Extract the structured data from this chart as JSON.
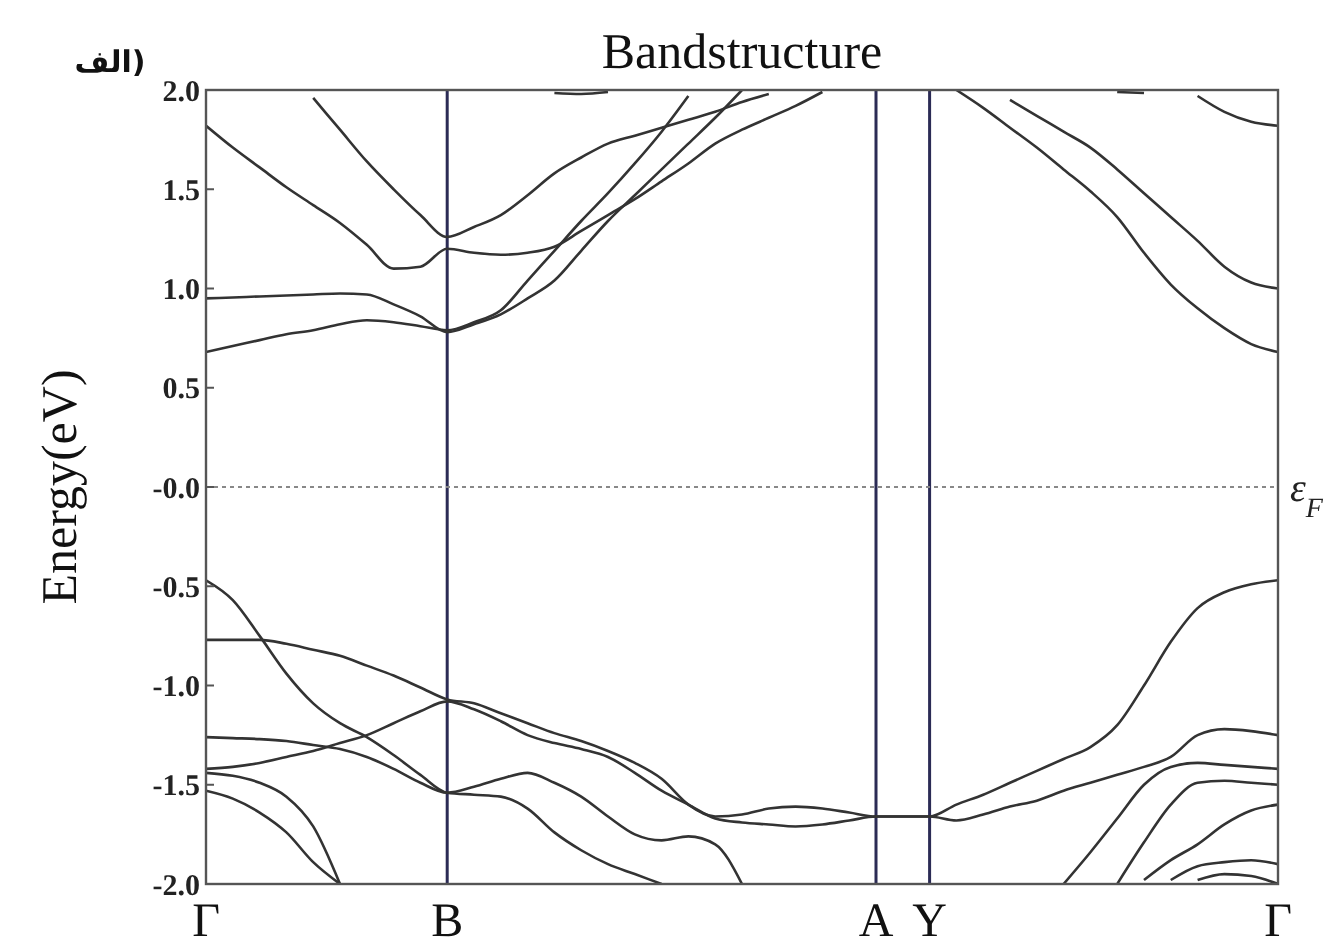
{
  "chart_data": {
    "type": "line",
    "title": "Bandstructure",
    "ylabel": "Energy(eV)",
    "annotations": [
      "الف)"
    ],
    "categories": [
      "Γ",
      null,
      null,
      null,
      null,
      null,
      null,
      null,
      null,
      "B",
      null,
      null,
      null,
      null,
      null,
      null,
      null,
      null,
      null,
      null,
      null,
      null,
      null,
      null,
      null,
      "A",
      null,
      "Y",
      null,
      null,
      null,
      null,
      null,
      null,
      null,
      null,
      null,
      null,
      null,
      null,
      "Γ"
    ],
    "ylim": [
      -2,
      2
    ],
    "yticks": [
      {
        "value": 2,
        "label": "2.0"
      },
      1.5,
      {
        "value": 1,
        "label": "1.0"
      },
      0.5,
      {
        "value": 0,
        "label": "-0.0"
      },
      -0.5,
      {
        "value": -1,
        "label": "-1.0"
      },
      -1.5,
      {
        "value": -2,
        "label": "-2.0"
      }
    ],
    "grid": false,
    "ref_lines": [
      {
        "axis": "x",
        "value": "B",
        "color": "#2b2b55"
      },
      {
        "axis": "x",
        "value": "A",
        "color": "#2b2b55"
      },
      {
        "axis": "x",
        "value": "Y",
        "color": "#2b2b55"
      },
      {
        "axis": "y",
        "value": 0,
        "label": "ε$_{F}$",
        "color": "#888888",
        "line_style": "dotted"
      }
    ],
    "series": [
      {
        "color": "#333333",
        "values": [
          0.68,
          0.71,
          0.74,
          0.77,
          0.79,
          0.82,
          0.84,
          0.83,
          0.81,
          0.79,
          0.83,
          0.89,
          1.04,
          1.19,
          1.34,
          1.48,
          1.63,
          1.79,
          1.97,
          null,
          null,
          null,
          null,
          null,
          null,
          null,
          null,
          null,
          null,
          null,
          null,
          null,
          null,
          null,
          null,
          null,
          null,
          null,
          null,
          null,
          null
        ]
      },
      {
        "color": "#333333",
        "values": [
          0.95,
          0.955,
          0.96,
          0.965,
          0.97,
          0.975,
          0.97,
          0.92,
          0.86,
          0.78,
          0.82,
          0.87,
          0.95,
          1.04,
          1.19,
          1.34,
          1.47,
          1.6,
          1.73,
          1.86,
          2.0,
          null,
          null,
          null,
          null,
          null,
          null,
          null,
          null,
          null,
          null,
          null,
          null,
          null,
          null,
          null,
          null,
          null,
          null,
          null,
          null
        ]
      },
      {
        "color": "#333333",
        "values": [
          1.82,
          1.71,
          1.61,
          1.51,
          1.42,
          1.33,
          1.22,
          1.1,
          1.11,
          1.2,
          1.18,
          1.17,
          1.18,
          1.21,
          1.29,
          1.37,
          1.45,
          1.54,
          1.63,
          1.73,
          1.8,
          1.86,
          1.92,
          1.99,
          null,
          null,
          null,
          null,
          null,
          null,
          null,
          null,
          null,
          null,
          null,
          null,
          null,
          null,
          null,
          null,
          null
        ]
      },
      {
        "color": "#333333",
        "values": [
          null,
          null,
          null,
          null,
          1.96,
          1.8,
          1.64,
          1.5,
          1.37,
          1.26,
          1.31,
          1.37,
          1.47,
          1.58,
          1.66,
          1.73,
          1.77,
          1.81,
          1.85,
          1.89,
          1.94,
          1.98,
          null,
          null,
          null,
          null,
          null,
          null,
          null,
          null,
          null,
          null,
          null,
          null,
          null,
          null,
          null,
          null,
          null,
          null,
          null
        ]
      },
      {
        "color": "#333333",
        "values": [
          null,
          null,
          null,
          null,
          null,
          null,
          null,
          null,
          null,
          null,
          null,
          null,
          null,
          1.985,
          1.98,
          1.99,
          null,
          null,
          null,
          null,
          null,
          null,
          null,
          null,
          null,
          null,
          null,
          null,
          null,
          null,
          null,
          null,
          null,
          null,
          null,
          null,
          null,
          null,
          null,
          null,
          null
        ]
      },
      {
        "color": "#333333",
        "values": [
          null,
          null,
          null,
          null,
          null,
          null,
          null,
          null,
          null,
          null,
          null,
          null,
          null,
          null,
          null,
          null,
          null,
          null,
          null,
          null,
          null,
          null,
          null,
          null,
          null,
          null,
          null,
          null,
          null,
          null,
          null,
          null,
          null,
          null,
          1.99,
          1.985,
          null,
          null,
          null,
          null,
          null
        ]
      },
      {
        "color": "#333333",
        "values": [
          null,
          null,
          null,
          null,
          null,
          null,
          null,
          null,
          null,
          null,
          null,
          null,
          null,
          null,
          null,
          null,
          null,
          null,
          null,
          null,
          null,
          null,
          null,
          null,
          null,
          null,
          null,
          null,
          2.0,
          1.91,
          1.81,
          1.71,
          1.6,
          1.49,
          1.36,
          1.18,
          1.02,
          0.9,
          0.8,
          0.72,
          0.68
        ]
      },
      {
        "color": "#333333",
        "values": [
          null,
          null,
          null,
          null,
          null,
          null,
          null,
          null,
          null,
          null,
          null,
          null,
          null,
          null,
          null,
          null,
          null,
          null,
          null,
          null,
          null,
          null,
          null,
          null,
          null,
          null,
          null,
          null,
          null,
          null,
          1.95,
          1.87,
          1.79,
          1.71,
          1.6,
          1.48,
          1.36,
          1.24,
          1.11,
          1.03,
          1.0
        ]
      },
      {
        "color": "#333333",
        "values": [
          null,
          null,
          null,
          null,
          null,
          null,
          null,
          null,
          null,
          null,
          null,
          null,
          null,
          null,
          null,
          null,
          null,
          null,
          null,
          null,
          null,
          null,
          null,
          null,
          null,
          null,
          null,
          null,
          null,
          null,
          null,
          null,
          null,
          null,
          null,
          null,
          null,
          1.97,
          1.89,
          1.84,
          1.82
        ]
      },
      {
        "color": "#333333",
        "values": [
          -0.47,
          -0.57,
          -0.75,
          -0.94,
          -1.09,
          -1.19,
          -1.26,
          -1.35,
          -1.45,
          -1.54,
          -1.55,
          -1.56,
          -1.62,
          -1.74,
          -1.83,
          -1.9,
          -1.95,
          -2.0,
          null,
          null,
          null,
          null,
          null,
          null,
          null,
          null,
          null,
          null,
          null,
          null,
          null,
          null,
          null,
          null,
          null,
          null,
          null,
          null,
          null,
          null,
          null
        ]
      },
      {
        "color": "#333333",
        "values": [
          -1.26,
          -1.265,
          -1.27,
          -1.28,
          -1.3,
          -1.32,
          -1.36,
          -1.42,
          -1.49,
          -1.54,
          -1.51,
          -1.47,
          -1.44,
          -1.49,
          -1.56,
          -1.66,
          -1.75,
          -1.78,
          -1.76,
          -1.8,
          -2.0,
          null,
          null,
          null,
          null,
          null,
          null,
          null,
          null,
          null,
          null,
          null,
          null,
          null,
          null,
          null,
          null,
          null,
          null,
          null,
          null
        ]
      },
      {
        "color": "#333333",
        "values": [
          -0.77,
          -0.77,
          -0.77,
          -0.79,
          -0.82,
          -0.85,
          -0.9,
          -0.95,
          -1.01,
          -1.07,
          -1.09,
          -1.14,
          -1.19,
          -1.24,
          -1.28,
          -1.33,
          -1.39,
          -1.47,
          -1.6,
          -1.66,
          -1.65,
          -1.62,
          -1.61,
          -1.62,
          -1.64,
          -1.66,
          -1.66,
          -1.66,
          -1.6,
          -1.55,
          -1.49,
          -1.43,
          -1.37,
          -1.31,
          -1.2,
          -1.0,
          -0.78,
          -0.61,
          -0.53,
          -0.49,
          -0.47
        ]
      },
      {
        "color": "#333333",
        "values": [
          -1.42,
          -1.41,
          -1.39,
          -1.36,
          -1.33,
          -1.29,
          -1.25,
          -1.19,
          -1.13,
          -1.08,
          -1.12,
          -1.18,
          -1.25,
          -1.29,
          -1.32,
          -1.36,
          -1.44,
          -1.53,
          -1.6,
          -1.67,
          -1.69,
          -1.7,
          -1.71,
          -1.7,
          -1.68,
          -1.66,
          -1.66,
          -1.66,
          -1.68,
          -1.65,
          -1.61,
          -1.58,
          -1.53,
          -1.49,
          -1.45,
          -1.41,
          -1.36,
          -1.25,
          -1.22,
          -1.23,
          -1.25
        ]
      },
      {
        "color": "#333333",
        "values": [
          -1.44,
          -1.455,
          -1.49,
          -1.56,
          -1.71,
          -2.0,
          null,
          null,
          null,
          null,
          null,
          null,
          null,
          null,
          null,
          null,
          null,
          null,
          null,
          null,
          null,
          null,
          null,
          null,
          null,
          null,
          null,
          null,
          null,
          null,
          null,
          null,
          null,
          null,
          null,
          null,
          null,
          null,
          null,
          null,
          null
        ]
      },
      {
        "color": "#333333",
        "values": [
          -1.53,
          -1.57,
          -1.64,
          -1.74,
          -1.89,
          -2.0,
          null,
          null,
          null,
          null,
          null,
          null,
          null,
          null,
          null,
          null,
          null,
          null,
          null,
          null,
          null,
          null,
          null,
          null,
          null,
          null,
          null,
          null,
          null,
          null,
          null,
          null,
          null,
          null,
          null,
          null,
          null,
          null,
          null,
          null,
          null
        ]
      },
      {
        "color": "#333333",
        "values": [
          null,
          null,
          null,
          null,
          null,
          null,
          null,
          null,
          null,
          null,
          null,
          null,
          null,
          null,
          null,
          null,
          null,
          null,
          null,
          null,
          null,
          null,
          null,
          null,
          null,
          null,
          null,
          null,
          null,
          null,
          null,
          null,
          -2.0,
          -1.84,
          -1.67,
          -1.5,
          -1.41,
          -1.39,
          -1.4,
          -1.41,
          -1.42
        ]
      },
      {
        "color": "#333333",
        "values": [
          null,
          null,
          null,
          null,
          null,
          null,
          null,
          null,
          null,
          null,
          null,
          null,
          null,
          null,
          null,
          null,
          null,
          null,
          null,
          null,
          null,
          null,
          null,
          null,
          null,
          null,
          null,
          null,
          null,
          null,
          null,
          null,
          null,
          null,
          -2.0,
          -1.79,
          -1.6,
          -1.49,
          -1.48,
          -1.49,
          -1.5
        ]
      },
      {
        "color": "#333333",
        "values": [
          null,
          null,
          null,
          null,
          null,
          null,
          null,
          null,
          null,
          null,
          null,
          null,
          null,
          null,
          null,
          null,
          null,
          null,
          null,
          null,
          null,
          null,
          null,
          null,
          null,
          null,
          null,
          null,
          null,
          null,
          null,
          null,
          null,
          null,
          null,
          -1.98,
          -1.88,
          -1.8,
          -1.7,
          -1.63,
          -1.6
        ]
      },
      {
        "color": "#333333",
        "values": [
          null,
          null,
          null,
          null,
          null,
          null,
          null,
          null,
          null,
          null,
          null,
          null,
          null,
          null,
          null,
          null,
          null,
          null,
          null,
          null,
          null,
          null,
          null,
          null,
          null,
          null,
          null,
          null,
          null,
          null,
          null,
          null,
          null,
          null,
          null,
          null,
          -1.98,
          -1.91,
          -1.89,
          -1.88,
          -1.9
        ]
      },
      {
        "color": "#333333",
        "values": [
          null,
          null,
          null,
          null,
          null,
          null,
          null,
          null,
          null,
          null,
          null,
          null,
          null,
          null,
          null,
          null,
          null,
          null,
          null,
          null,
          null,
          null,
          null,
          null,
          null,
          null,
          null,
          null,
          null,
          null,
          null,
          null,
          null,
          null,
          null,
          null,
          null,
          -1.98,
          -1.95,
          -1.96,
          -2.0
        ]
      }
    ]
  }
}
